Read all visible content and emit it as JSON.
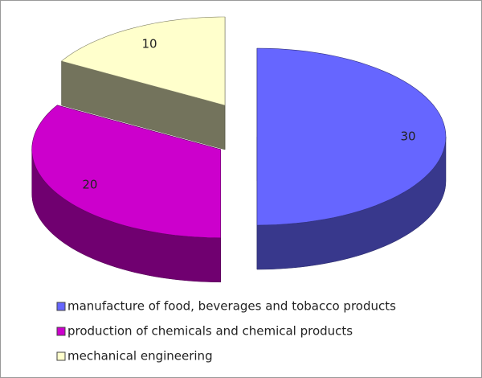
{
  "chart_data": {
    "type": "pie3d",
    "categories": [
      "manufacture of food, beverages and tobacco products",
      "production of chemicals and chemical products",
      "mechanical engineering"
    ],
    "values": [
      30,
      20,
      10
    ],
    "colors": [
      "#6666ff",
      "#cc00cc",
      "#ffffcc"
    ],
    "legend": "bottom"
  }
}
